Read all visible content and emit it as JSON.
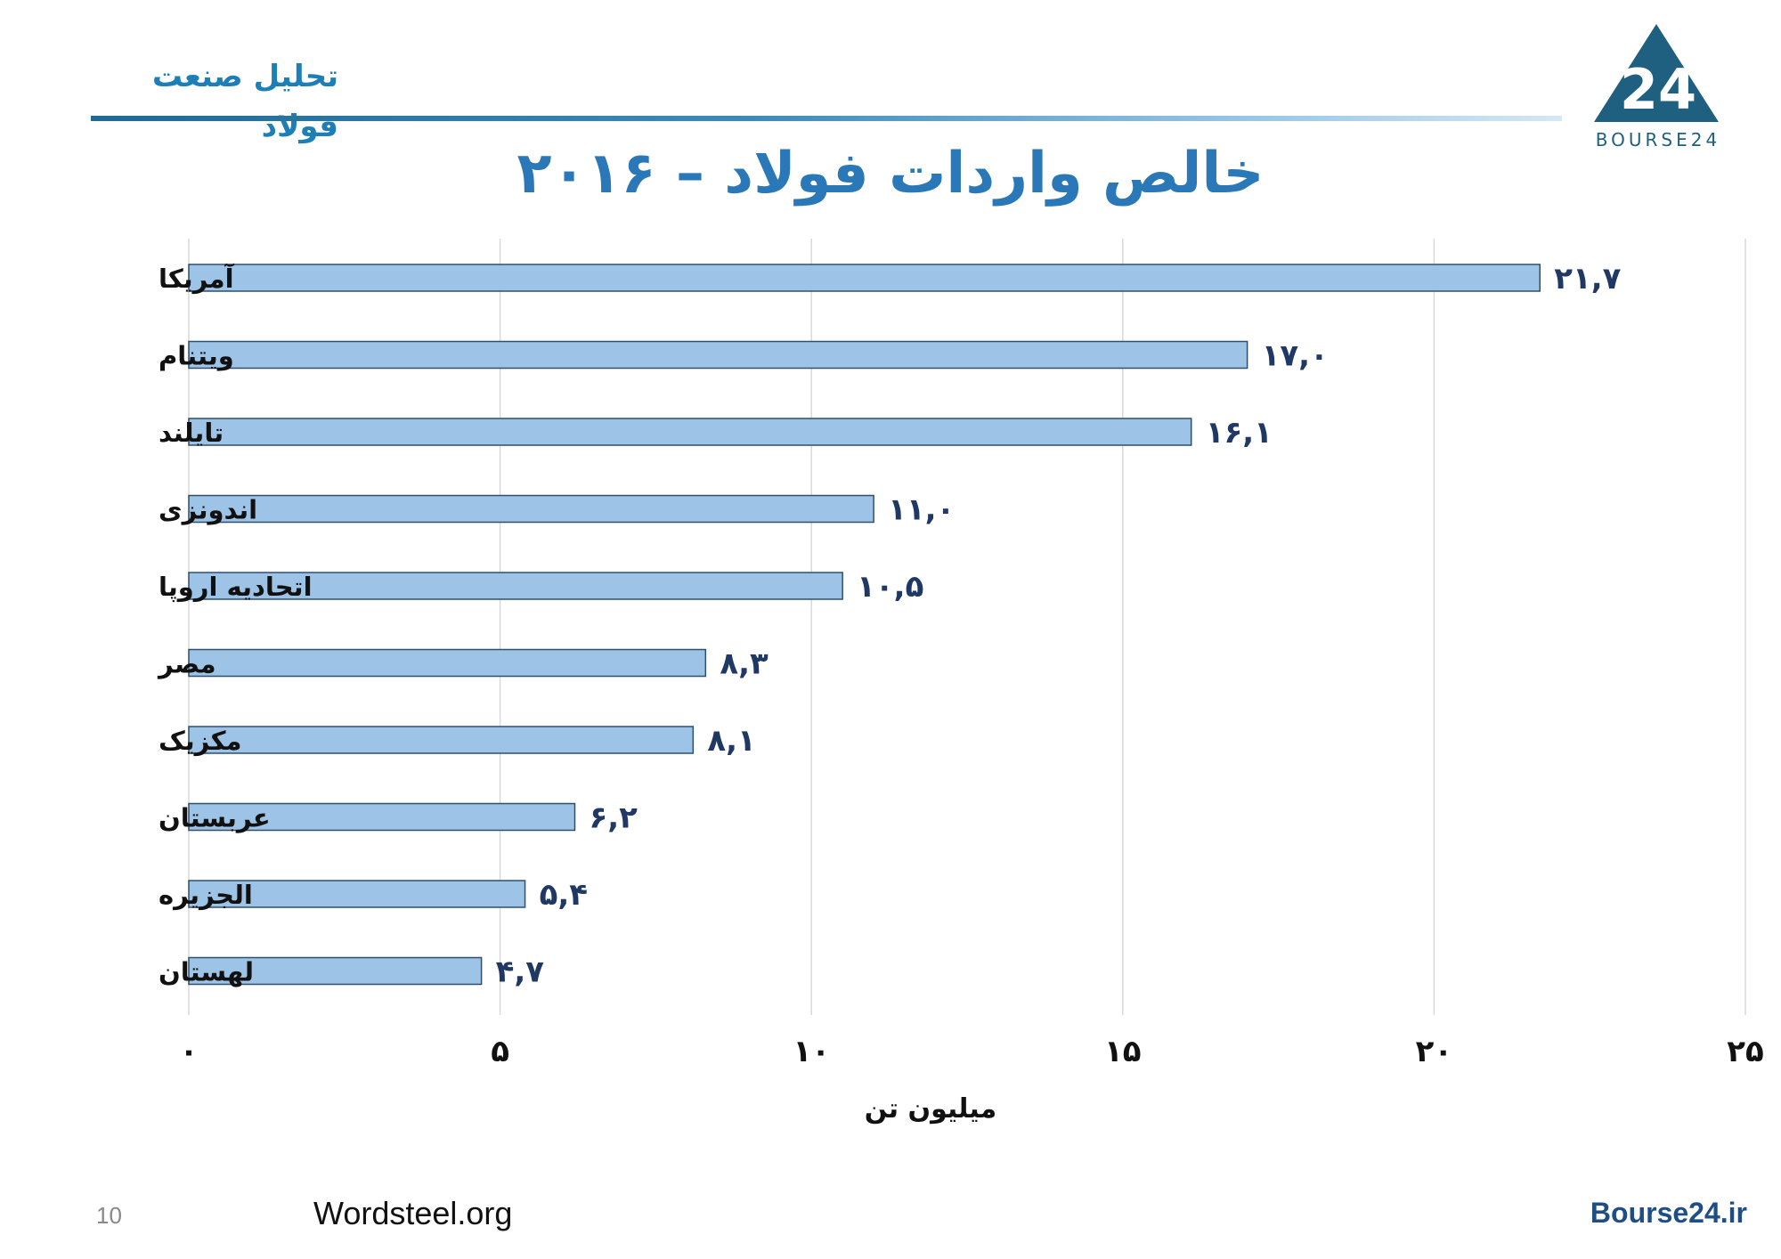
{
  "header": {
    "title": "تحلیل صنعت فولاد",
    "logo_text": "BOURSE24",
    "logo_mark": "24"
  },
  "footer": {
    "page_number": "10",
    "source": "Wordsteel.org",
    "site": "Bourse24.ir"
  },
  "colors": {
    "bar_fill": "#9dc3e6",
    "bar_stroke": "#2f4f6f",
    "value_label": "#1f3864",
    "title": "#2a78b7",
    "header_accent": "#1d7fb5",
    "logo": "#1f5f80",
    "gridline": "#d9d9d9"
  },
  "chart_data": {
    "type": "bar",
    "orientation": "horizontal",
    "title": "خالص واردات فولاد – ۲۰۱۶",
    "xlabel": "میلیون تن",
    "ylabel": "",
    "xlim": [
      0,
      25
    ],
    "x_ticks": [
      0,
      5,
      10,
      15,
      20,
      25
    ],
    "x_tick_labels": [
      "۰",
      "۵",
      "۱۰",
      "۱۵",
      "۲۰",
      "۲۵"
    ],
    "grid": true,
    "categories": [
      "آمریکا",
      "ویتنام",
      "تایلند",
      "اندونزی",
      "اتحادیه اروپا",
      "مصر",
      "مکزیک",
      "عربستان",
      "الجزیره",
      "لهستان"
    ],
    "values": [
      21.7,
      17.0,
      16.1,
      11.0,
      10.5,
      8.3,
      8.1,
      6.2,
      5.4,
      4.7
    ],
    "value_labels": [
      "۲۱,۷",
      "۱۷,۰",
      "۱۶,۱",
      "۱۱,۰",
      "۱۰,۵",
      "۸,۳",
      "۸,۱",
      "۶,۲",
      "۵,۴",
      "۴,۷"
    ]
  }
}
